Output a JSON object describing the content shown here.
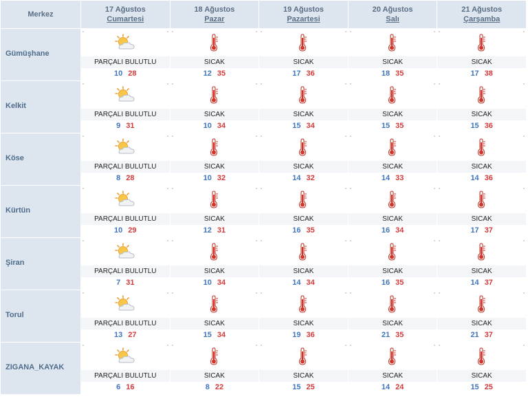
{
  "header": {
    "station_label": "Merkez",
    "days": [
      {
        "date": "17 Ağustos",
        "weekday": "Cumartesi"
      },
      {
        "date": "18 Ağustos",
        "weekday": "Pazar"
      },
      {
        "date": "19 Ağustos",
        "weekday": "Pazartesi"
      },
      {
        "date": "20 Ağustos",
        "weekday": "Salı"
      },
      {
        "date": "21 Ağustos",
        "weekday": "Çarşamba"
      }
    ]
  },
  "icons": {
    "partly_cloudy": "partly-cloudy-icon",
    "hot": "thermometer-hot-icon"
  },
  "colors": {
    "header_bg": "#dde6ef",
    "min_temp": "#3f74bd",
    "max_temp": "#d43a3a"
  },
  "rows": [
    {
      "name": "Gümüşhane",
      "days": [
        {
          "cond": "PARÇALI BULUTLU",
          "min": "10",
          "max": "28"
        },
        {
          "cond": "SICAK",
          "min": "12",
          "max": "35"
        },
        {
          "cond": "SICAK",
          "min": "17",
          "max": "36"
        },
        {
          "cond": "SICAK",
          "min": "18",
          "max": "35"
        },
        {
          "cond": "SICAK",
          "min": "17",
          "max": "38"
        }
      ]
    },
    {
      "name": "Kelkit",
      "days": [
        {
          "cond": "PARÇALI BULUTLU",
          "min": "9",
          "max": "31"
        },
        {
          "cond": "SICAK",
          "min": "10",
          "max": "34"
        },
        {
          "cond": "SICAK",
          "min": "15",
          "max": "34"
        },
        {
          "cond": "SICAK",
          "min": "15",
          "max": "35"
        },
        {
          "cond": "SICAK",
          "min": "15",
          "max": "36"
        }
      ]
    },
    {
      "name": "Köse",
      "days": [
        {
          "cond": "PARÇALI BULUTLU",
          "min": "8",
          "max": "28"
        },
        {
          "cond": "SICAK",
          "min": "10",
          "max": "32"
        },
        {
          "cond": "SICAK",
          "min": "14",
          "max": "32"
        },
        {
          "cond": "SICAK",
          "min": "14",
          "max": "33"
        },
        {
          "cond": "SICAK",
          "min": "14",
          "max": "36"
        }
      ]
    },
    {
      "name": "Kürtün",
      "days": [
        {
          "cond": "PARÇALI BULUTLU",
          "min": "10",
          "max": "29"
        },
        {
          "cond": "SICAK",
          "min": "12",
          "max": "31"
        },
        {
          "cond": "SICAK",
          "min": "16",
          "max": "35"
        },
        {
          "cond": "SICAK",
          "min": "16",
          "max": "34"
        },
        {
          "cond": "SICAK",
          "min": "17",
          "max": "37"
        }
      ]
    },
    {
      "name": "Şiran",
      "days": [
        {
          "cond": "PARÇALI BULUTLU",
          "min": "7",
          "max": "31"
        },
        {
          "cond": "SICAK",
          "min": "10",
          "max": "34"
        },
        {
          "cond": "SICAK",
          "min": "14",
          "max": "34"
        },
        {
          "cond": "SICAK",
          "min": "16",
          "max": "35"
        },
        {
          "cond": "SICAK",
          "min": "14",
          "max": "37"
        }
      ]
    },
    {
      "name": "Torul",
      "days": [
        {
          "cond": "PARÇALI BULUTLU",
          "min": "13",
          "max": "27"
        },
        {
          "cond": "SICAK",
          "min": "15",
          "max": "34"
        },
        {
          "cond": "SICAK",
          "min": "19",
          "max": "36"
        },
        {
          "cond": "SICAK",
          "min": "21",
          "max": "35"
        },
        {
          "cond": "SICAK",
          "min": "21",
          "max": "37"
        }
      ]
    },
    {
      "name": "ZIGANA_KAYAK",
      "days": [
        {
          "cond": "PARÇALI BULUTLU",
          "min": "6",
          "max": "16"
        },
        {
          "cond": "SICAK",
          "min": "8",
          "max": "22"
        },
        {
          "cond": "SICAK",
          "min": "15",
          "max": "25"
        },
        {
          "cond": "SICAK",
          "min": "14",
          "max": "24"
        },
        {
          "cond": "SICAK",
          "min": "15",
          "max": "25"
        }
      ]
    }
  ]
}
